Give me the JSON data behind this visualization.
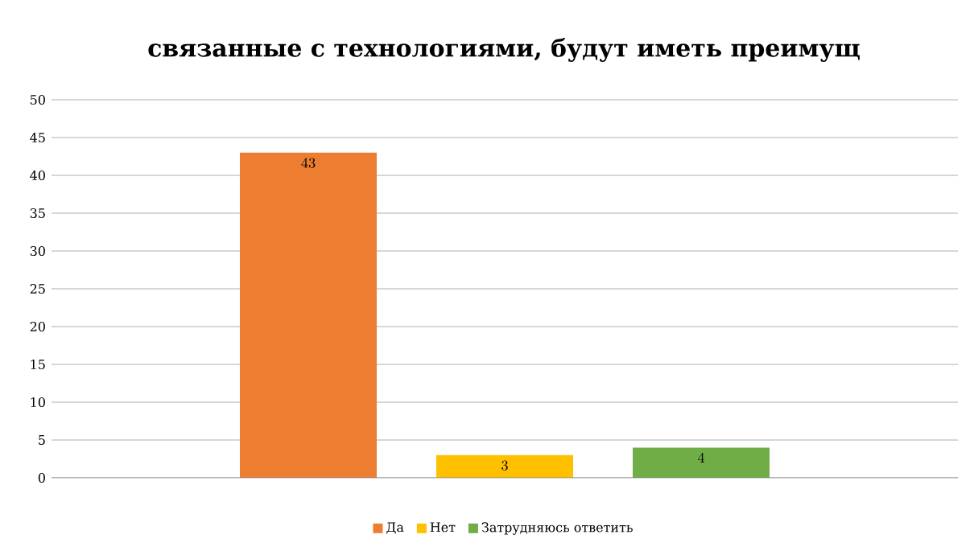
{
  "chart_data": {
    "type": "bar",
    "title": "связанные с технологиями, будут иметь преимущ",
    "categories": [
      null
    ],
    "series": [
      {
        "name": "Да",
        "color": "#ed7d31",
        "values": [
          43
        ]
      },
      {
        "name": "Нет",
        "color": "#ffc000",
        "values": [
          3
        ]
      },
      {
        "name": "Затрудняюсь ответить",
        "color": "#70ad47",
        "values": [
          4
        ]
      }
    ],
    "ylim": [
      0,
      50
    ],
    "yticks": [
      0,
      5,
      10,
      15,
      20,
      25,
      30,
      35,
      40,
      45,
      50
    ],
    "grid": "y",
    "legend": "bottom",
    "data_labels": true
  }
}
